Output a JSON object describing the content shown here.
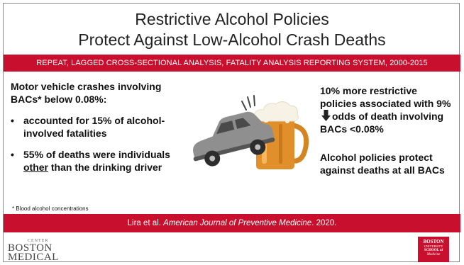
{
  "title": {
    "line1": "Restrictive Alcohol Policies",
    "line2": "Protect Against Low-Alcohol Crash Deaths"
  },
  "subtitle": "REPEAT, LAGGED CROSS-SECTIONAL ANALYSIS, FATALITY ANALYSIS REPORTING SYSTEM, 2000-2015",
  "left_panel": {
    "lead": "Motor vehicle crashes involving BACs* below 0.08%:",
    "bullet1": "accounted for 15% of alcohol-involved fatalities",
    "bullet2_pre": "55% of deaths were individuals ",
    "bullet2_underlined": "other",
    "bullet2_post": " than the drinking driver",
    "bullet_glyph": "•",
    "footnote": "* Blood alcohol concentrations"
  },
  "right_panel": {
    "p1_pre": "10% more restrictive policies associated with 9%",
    "p1_post": "odds of death involving BACs <0.08%",
    "p2": "Alcohol policies protect against deaths at all BACs"
  },
  "citation": {
    "authors": "Lira et al.",
    "journal": "American Journal of Preventive Medicine",
    "year": ". 2020."
  },
  "logos": {
    "bmc": {
      "small": "CENTER",
      "line1": "BOSTON",
      "line2": "MEDICAL"
    },
    "bu": {
      "line1": "BOSTON",
      "line2": "UNIVERSITY",
      "line3": "SCHOOL of",
      "line4": "Medicine"
    }
  },
  "colors": {
    "accent_red": "#c8102e",
    "beer": "#e0902a",
    "car": "#8f8f8f"
  },
  "icons": [
    "down-arrow-icon",
    "car-crash-beer-illustration"
  ]
}
